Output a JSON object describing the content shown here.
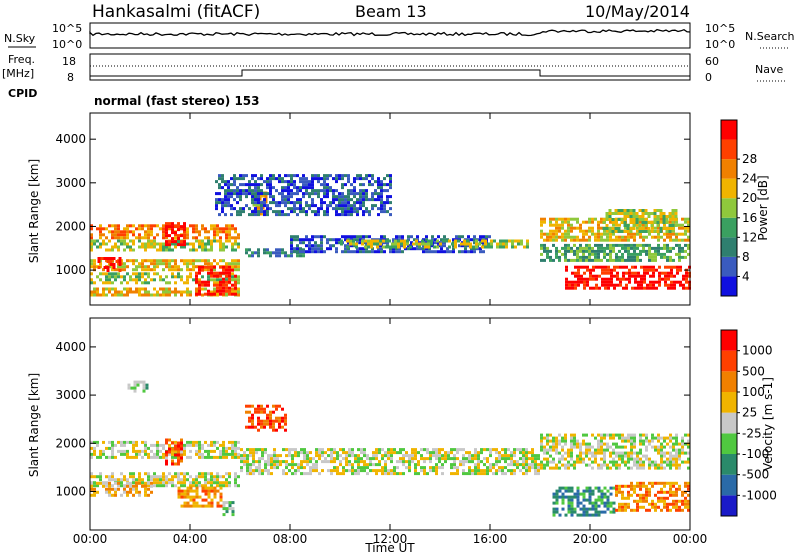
{
  "header": {
    "station": "Hankasalmi (fitACF)",
    "beam": "Beam 13",
    "date": "10/May/2014"
  },
  "top_panels": {
    "nsky_label": "N.Sky",
    "nsky_ticks": [
      "10^5",
      "10^0"
    ],
    "nsearch_label": "N.Search",
    "nsearch_ticks": [
      "10^5",
      "10^0"
    ],
    "freq_label": "Freq.",
    "freq_unit": "[MHz]",
    "freq_ticks": [
      "18",
      "8"
    ],
    "nave_label": "Nave",
    "nave_ticks": [
      "60",
      "0"
    ],
    "cpid_label": "CPID",
    "cpid_text": "normal (fast stereo) 153"
  },
  "chart_data": [
    {
      "type": "heatmap",
      "name": "power",
      "xlabel": "",
      "ylabel": "Slant Range [km]",
      "xlim": [
        0,
        24
      ],
      "ylim": [
        200,
        4600
      ],
      "yticks": [
        "1000",
        "2000",
        "3000",
        "4000"
      ],
      "colorbar": {
        "label": "Power [dB]",
        "ticks": [
          "4",
          "8",
          "12",
          "16",
          "20",
          "24",
          "28"
        ],
        "colors": [
          "#1010e0",
          "#3a5bbf",
          "#2f7f6f",
          "#3aa060",
          "#8fc83c",
          "#f0b400",
          "#f08000",
          "#ff4000",
          "#ff0000"
        ]
      },
      "bands": [
        {
          "x": [
            0,
            6
          ],
          "y": [
            1750,
            2050
          ],
          "level": 6
        },
        {
          "x": [
            0,
            6
          ],
          "y": [
            1450,
            1700
          ],
          "level": 4
        },
        {
          "x": [
            0,
            6
          ],
          "y": [
            1000,
            1250
          ],
          "level": 5
        },
        {
          "x": [
            0,
            6
          ],
          "y": [
            700,
            950
          ],
          "level": 4
        },
        {
          "x": [
            0,
            6
          ],
          "y": [
            400,
            600
          ],
          "level": 5
        },
        {
          "x": [
            3,
            3.8
          ],
          "y": [
            1550,
            2100
          ],
          "level": 8
        },
        {
          "x": [
            4.2,
            5.8
          ],
          "y": [
            420,
            1100
          ],
          "level": 8
        },
        {
          "x": [
            0.3,
            1.2
          ],
          "y": [
            1000,
            1300
          ],
          "level": 8
        },
        {
          "x": [
            6.2,
            8.5
          ],
          "y": [
            1300,
            1500
          ],
          "level": 2
        },
        {
          "x": [
            6.5,
            7.0
          ],
          "y": [
            2300,
            2800
          ],
          "level": 5
        },
        {
          "x": [
            8,
            16
          ],
          "y": [
            1400,
            1800
          ],
          "level": 1
        },
        {
          "x": [
            10,
            17.5
          ],
          "y": [
            1550,
            1700
          ],
          "level": 4
        },
        {
          "x": [
            18,
            24
          ],
          "y": [
            1700,
            2200
          ],
          "level": 5
        },
        {
          "x": [
            18,
            24
          ],
          "y": [
            1200,
            1600
          ],
          "level": 3
        },
        {
          "x": [
            19,
            24
          ],
          "y": [
            600,
            1100
          ],
          "level": 8
        },
        {
          "x": [
            20.5,
            23.5
          ],
          "y": [
            1900,
            2400
          ],
          "level": 4
        },
        {
          "x": [
            5,
            12
          ],
          "y": [
            2300,
            3200
          ],
          "level": 1
        }
      ]
    },
    {
      "type": "heatmap",
      "name": "velocity",
      "xlabel": "Time UT",
      "ylabel": "Slant Range [km]",
      "xlim": [
        0,
        24
      ],
      "ylim": [
        200,
        4600
      ],
      "xticks": [
        "00:00",
        "04:00",
        "08:00",
        "12:00",
        "16:00",
        "20:00",
        "00:00"
      ],
      "yticks": [
        "1000",
        "2000",
        "3000",
        "4000"
      ],
      "colorbar": {
        "label": "Velocity [m s-1]",
        "ticks": [
          "1000",
          "500",
          "100",
          "25",
          "-25",
          "-100",
          "-500",
          "-1000"
        ],
        "colors": [
          "#1a1ac8",
          "#2a6aa8",
          "#2a8a6a",
          "#50c840",
          "#c8c8c8",
          "#f0b400",
          "#f08000",
          "#ff4000",
          "#ff0000"
        ]
      },
      "bands": [
        {
          "x": [
            0,
            6
          ],
          "y": [
            1700,
            2050
          ],
          "level": 4
        },
        {
          "x": [
            0,
            6
          ],
          "y": [
            1100,
            1400
          ],
          "level": 4
        },
        {
          "x": [
            0,
            2.5
          ],
          "y": [
            900,
            1200
          ],
          "level": 5
        },
        {
          "x": [
            3,
            3.7
          ],
          "y": [
            1600,
            2100
          ],
          "level": 7
        },
        {
          "x": [
            3.5,
            5.2
          ],
          "y": [
            700,
            1100
          ],
          "level": 6
        },
        {
          "x": [
            5.3,
            5.7
          ],
          "y": [
            500,
            800
          ],
          "level": 3
        },
        {
          "x": [
            6.2,
            7.8
          ],
          "y": [
            2300,
            2800
          ],
          "level": 7
        },
        {
          "x": [
            6,
            18
          ],
          "y": [
            1400,
            1900
          ],
          "level": 4
        },
        {
          "x": [
            18,
            24
          ],
          "y": [
            1500,
            2200
          ],
          "level": 4
        },
        {
          "x": [
            18.5,
            21
          ],
          "y": [
            500,
            1100
          ],
          "level": 2
        },
        {
          "x": [
            21,
            24
          ],
          "y": [
            600,
            1200
          ],
          "level": 6
        },
        {
          "x": [
            1.5,
            2.3
          ],
          "y": [
            3100,
            3300
          ],
          "level": 3
        }
      ]
    }
  ],
  "series_colors": {
    "line": "#000000",
    "axis": "#000000"
  }
}
